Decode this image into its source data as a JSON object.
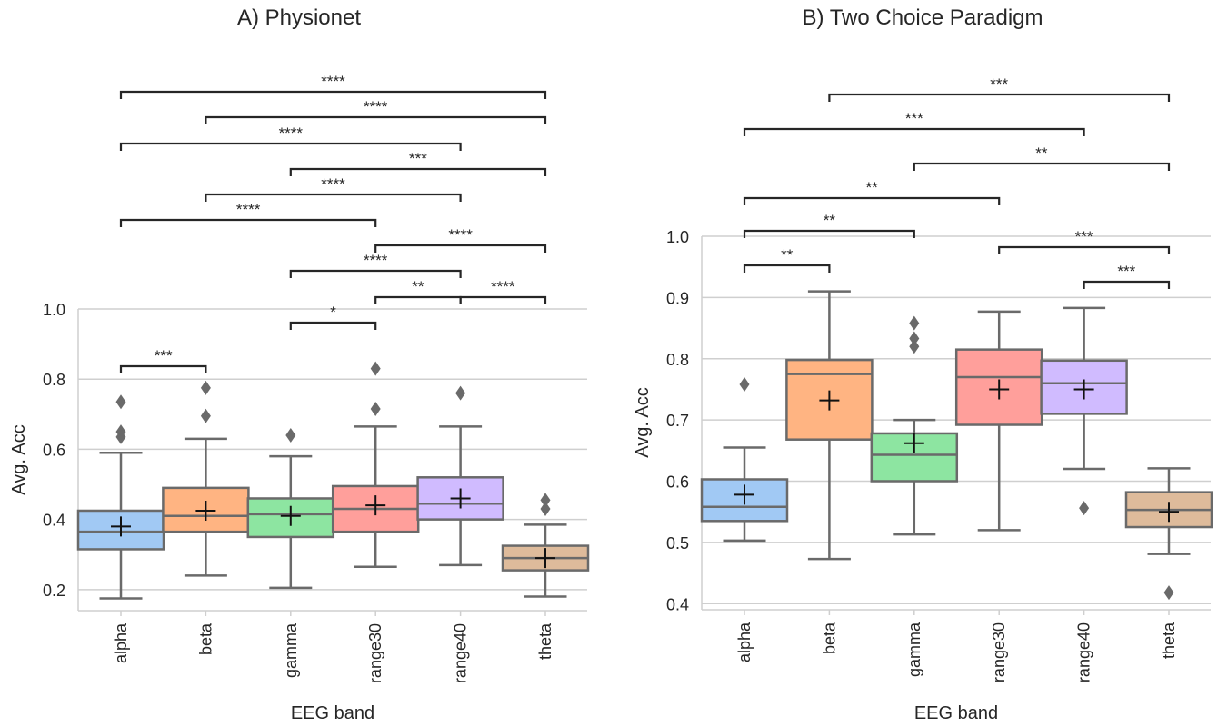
{
  "colors": {
    "alpha": "#a1c9f4",
    "beta": "#ffb482",
    "gamma": "#8de5a1",
    "range30": "#ff9f9b",
    "range40": "#d0bbff",
    "theta": "#debb9b",
    "box_edge": "#6a6a6a",
    "grid": "#cfcfcf",
    "bracket": "#262626"
  },
  "chart_data": [
    {
      "type": "box",
      "title": "A) Physionet",
      "xlabel": "EEG band",
      "ylabel": "Avg. Acc",
      "ylim": [
        0.14,
        1.0
      ],
      "yticks": [
        "0.2",
        "0.4",
        "0.6",
        "0.8",
        "1.0"
      ],
      "categories": [
        "alpha",
        "beta",
        "gamma",
        "range30",
        "range40",
        "theta"
      ],
      "boxes": [
        {
          "whislo": 0.175,
          "q1": 0.315,
          "med": 0.365,
          "q3": 0.425,
          "whishi": 0.59,
          "mean": 0.38,
          "fliers": [
            0.635,
            0.65,
            0.735
          ]
        },
        {
          "whislo": 0.24,
          "q1": 0.365,
          "med": 0.41,
          "q3": 0.49,
          "whishi": 0.63,
          "mean": 0.425,
          "fliers": [
            0.695,
            0.775
          ]
        },
        {
          "whislo": 0.205,
          "q1": 0.35,
          "med": 0.415,
          "q3": 0.46,
          "whishi": 0.58,
          "mean": 0.41,
          "fliers": [
            0.64
          ]
        },
        {
          "whislo": 0.265,
          "q1": 0.365,
          "med": 0.43,
          "q3": 0.495,
          "whishi": 0.665,
          "mean": 0.44,
          "fliers": [
            0.715,
            0.83
          ]
        },
        {
          "whislo": 0.27,
          "q1": 0.4,
          "med": 0.445,
          "q3": 0.52,
          "whishi": 0.665,
          "mean": 0.46,
          "fliers": [
            0.76
          ]
        },
        {
          "whislo": 0.18,
          "q1": 0.255,
          "med": 0.29,
          "q3": 0.325,
          "whishi": 0.385,
          "mean": 0.29,
          "fliers": [
            0.43,
            0.455
          ]
        }
      ],
      "annotations": [
        {
          "pair": [
            0,
            1
          ],
          "label": "***"
        },
        {
          "pair": [
            2,
            3
          ],
          "label": "*"
        },
        {
          "pair": [
            3,
            4
          ],
          "label": "**"
        },
        {
          "pair": [
            4,
            5
          ],
          "label": "****"
        },
        {
          "pair": [
            2,
            4
          ],
          "label": "****"
        },
        {
          "pair": [
            3,
            5
          ],
          "label": "****"
        },
        {
          "pair": [
            0,
            3
          ],
          "label": "****"
        },
        {
          "pair": [
            1,
            4
          ],
          "label": "****"
        },
        {
          "pair": [
            2,
            5
          ],
          "label": "***"
        },
        {
          "pair": [
            0,
            4
          ],
          "label": "****"
        },
        {
          "pair": [
            1,
            5
          ],
          "label": "****"
        },
        {
          "pair": [
            0,
            5
          ],
          "label": "****"
        }
      ]
    },
    {
      "type": "box",
      "title": "B) Two Choice Paradigm",
      "xlabel": "EEG band",
      "ylabel": "Avg. Acc",
      "ylim": [
        0.39,
        1.0
      ],
      "yticks": [
        "0.4",
        "0.5",
        "0.6",
        "0.7",
        "0.8",
        "0.9",
        "1.0"
      ],
      "categories": [
        "alpha",
        "beta",
        "gamma",
        "range30",
        "range40",
        "theta"
      ],
      "boxes": [
        {
          "whislo": 0.503,
          "q1": 0.535,
          "med": 0.558,
          "q3": 0.603,
          "whishi": 0.655,
          "mean": 0.578,
          "fliers": [
            0.758
          ]
        },
        {
          "whislo": 0.473,
          "q1": 0.668,
          "med": 0.775,
          "q3": 0.798,
          "whishi": 0.91,
          "mean": 0.732,
          "fliers": []
        },
        {
          "whislo": 0.513,
          "q1": 0.6,
          "med": 0.643,
          "q3": 0.678,
          "whishi": 0.7,
          "mean": 0.662,
          "fliers": [
            0.82,
            0.833,
            0.858
          ]
        },
        {
          "whislo": 0.52,
          "q1": 0.692,
          "med": 0.77,
          "q3": 0.815,
          "whishi": 0.877,
          "mean": 0.75,
          "fliers": []
        },
        {
          "whislo": 0.62,
          "q1": 0.71,
          "med": 0.76,
          "q3": 0.797,
          "whishi": 0.883,
          "mean": 0.75,
          "fliers": [
            0.556
          ]
        },
        {
          "whislo": 0.481,
          "q1": 0.525,
          "med": 0.553,
          "q3": 0.582,
          "whishi": 0.621,
          "mean": 0.55,
          "fliers": [
            0.418
          ]
        }
      ],
      "annotations": [
        {
          "pair": [
            4,
            5
          ],
          "label": "***"
        },
        {
          "pair": [
            0,
            1
          ],
          "label": "**"
        },
        {
          "pair": [
            3,
            5
          ],
          "label": "***"
        },
        {
          "pair": [
            0,
            2
          ],
          "label": "**"
        },
        {
          "pair": [
            0,
            3
          ],
          "label": "**"
        },
        {
          "pair": [
            2,
            5
          ],
          "label": "**"
        },
        {
          "pair": [
            0,
            4
          ],
          "label": "***"
        },
        {
          "pair": [
            1,
            5
          ],
          "label": "***"
        }
      ]
    }
  ]
}
